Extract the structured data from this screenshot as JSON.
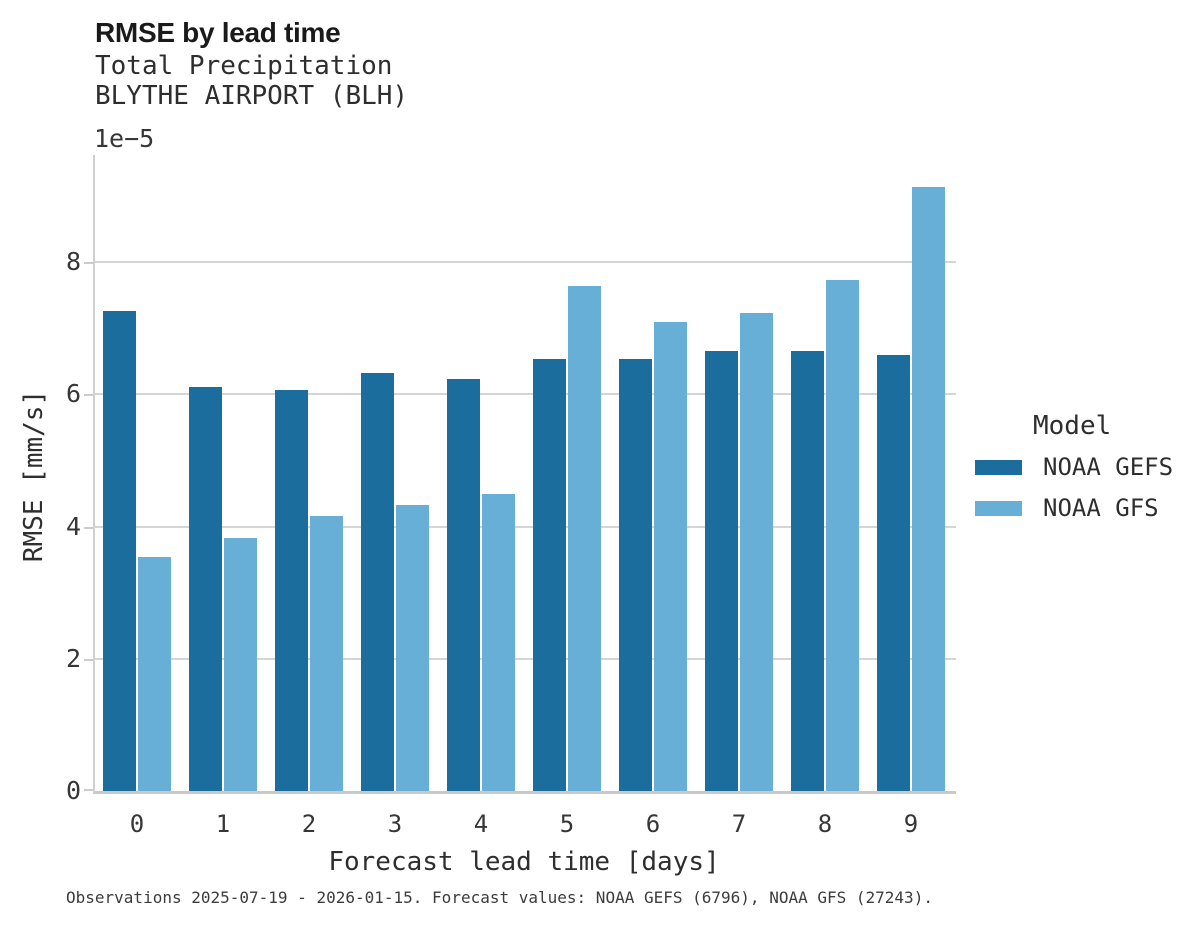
{
  "header": {
    "title": "RMSE by lead time",
    "subtitle_variable": "Total Precipitation",
    "subtitle_station": "BLYTHE AIRPORT (BLH)"
  },
  "chart_data": {
    "type": "bar",
    "title": "RMSE by lead time",
    "subtitle": [
      "Total Precipitation",
      "BLYTHE AIRPORT (BLH)"
    ],
    "categories": [
      "0",
      "1",
      "2",
      "3",
      "4",
      "5",
      "6",
      "7",
      "8",
      "9"
    ],
    "series": [
      {
        "name": "NOAA GEFS",
        "color": "#1a6d9d",
        "values": [
          7.26,
          6.11,
          6.07,
          6.33,
          6.23,
          6.53,
          6.54,
          6.66,
          6.65,
          6.59
        ]
      },
      {
        "name": "NOAA GFS",
        "color": "#68afd7",
        "values": [
          3.54,
          3.83,
          4.16,
          4.32,
          4.49,
          7.64,
          7.1,
          7.23,
          7.73,
          9.13
        ]
      }
    ],
    "value_multiplier": "1e−5",
    "xlabel": "Forecast lead time [days]",
    "ylabel": "RMSE [mm/s]",
    "ylim": [
      0,
      9.62
    ],
    "yticks": [
      0,
      2,
      4,
      6,
      8
    ],
    "grid": "horizontal",
    "legend_title": "Model",
    "legend_position": "right-outside"
  },
  "axes": {
    "offset_text": "1e−5",
    "ylabel": "RMSE [mm/s]",
    "xlabel": "Forecast lead time [days]"
  },
  "legend": {
    "title": "Model",
    "entries": [
      {
        "label": "NOAA GEFS",
        "color": "#1a6d9d"
      },
      {
        "label": "NOAA GFS",
        "color": "#68afd7"
      }
    ]
  },
  "footer": {
    "caption": "Observations 2025-07-19 - 2026-01-15. Forecast values: NOAA GEFS (6796), NOAA GFS (27243)."
  },
  "colors": {
    "gefs_bar": "#1a6d9d",
    "gfs_bar": "#68afd7",
    "gridline": "#d5d5d5",
    "spine": "#cfcfcf",
    "title_text": "#1a1a1a",
    "body_text": "#2e2e2e",
    "footer_text": "#3c3c3c",
    "background": "#ffffff"
  }
}
